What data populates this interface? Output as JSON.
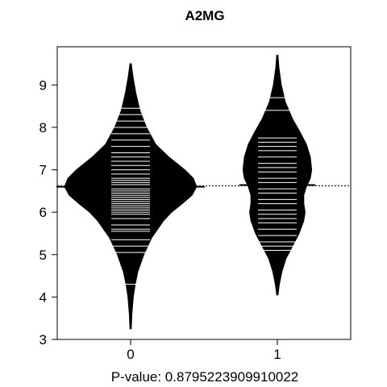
{
  "chart_data": {
    "type": "beanplot",
    "title": "A2MG",
    "xlabel": "P-value: 0.8795223909910022",
    "ylabel": "",
    "categories": [
      "0",
      "1"
    ],
    "ylim": [
      3,
      9.9
    ],
    "yticks": [
      3,
      4,
      5,
      6,
      7,
      8,
      9
    ],
    "overall_mean": 6.62,
    "series": [
      {
        "category": "0",
        "mean": 6.6,
        "range": [
          3.25,
          9.5
        ],
        "density_profile": [
          [
            3.25,
            0.01
          ],
          [
            3.6,
            0.02
          ],
          [
            4.0,
            0.04
          ],
          [
            4.3,
            0.07
          ],
          [
            4.6,
            0.11
          ],
          [
            5.0,
            0.2
          ],
          [
            5.4,
            0.32
          ],
          [
            5.8,
            0.5
          ],
          [
            6.0,
            0.62
          ],
          [
            6.2,
            0.78
          ],
          [
            6.4,
            0.93
          ],
          [
            6.6,
            1.0
          ],
          [
            6.8,
            0.95
          ],
          [
            7.0,
            0.82
          ],
          [
            7.3,
            0.58
          ],
          [
            7.6,
            0.38
          ],
          [
            8.0,
            0.24
          ],
          [
            8.4,
            0.14
          ],
          [
            8.8,
            0.08
          ],
          [
            9.2,
            0.035
          ],
          [
            9.5,
            0.01
          ]
        ],
        "observations": [
          4.3,
          5.05,
          5.2,
          5.35,
          5.55,
          5.6,
          5.7,
          5.85,
          5.95,
          6.0,
          6.05,
          6.1,
          6.15,
          6.2,
          6.25,
          6.3,
          6.35,
          6.4,
          6.45,
          6.5,
          6.55,
          6.6,
          6.65,
          6.7,
          6.75,
          6.8,
          6.9,
          7.0,
          7.1,
          7.2,
          7.3,
          7.4,
          7.55,
          7.7,
          7.85,
          8.0,
          8.15,
          8.3,
          8.45
        ]
      },
      {
        "category": "1",
        "mean": 6.64,
        "range": [
          4.05,
          9.7
        ],
        "density_profile": [
          [
            4.05,
            0.01
          ],
          [
            4.3,
            0.03
          ],
          [
            4.6,
            0.07
          ],
          [
            4.9,
            0.13
          ],
          [
            5.2,
            0.23
          ],
          [
            5.5,
            0.33
          ],
          [
            5.8,
            0.4
          ],
          [
            6.0,
            0.42
          ],
          [
            6.2,
            0.4
          ],
          [
            6.4,
            0.4
          ],
          [
            6.6,
            0.44
          ],
          [
            6.8,
            0.5
          ],
          [
            7.0,
            0.52
          ],
          [
            7.3,
            0.5
          ],
          [
            7.6,
            0.44
          ],
          [
            7.9,
            0.34
          ],
          [
            8.2,
            0.23
          ],
          [
            8.6,
            0.12
          ],
          [
            9.0,
            0.06
          ],
          [
            9.4,
            0.025
          ],
          [
            9.7,
            0.01
          ]
        ],
        "observations": [
          5.1,
          5.2,
          5.3,
          5.45,
          5.6,
          5.75,
          5.85,
          5.95,
          6.05,
          6.2,
          6.3,
          6.45,
          6.55,
          6.7,
          6.8,
          6.95,
          7.05,
          7.15,
          7.3,
          7.45,
          7.55,
          7.65,
          7.75,
          8.4,
          8.7
        ]
      }
    ],
    "grid": false,
    "legend": "none"
  }
}
